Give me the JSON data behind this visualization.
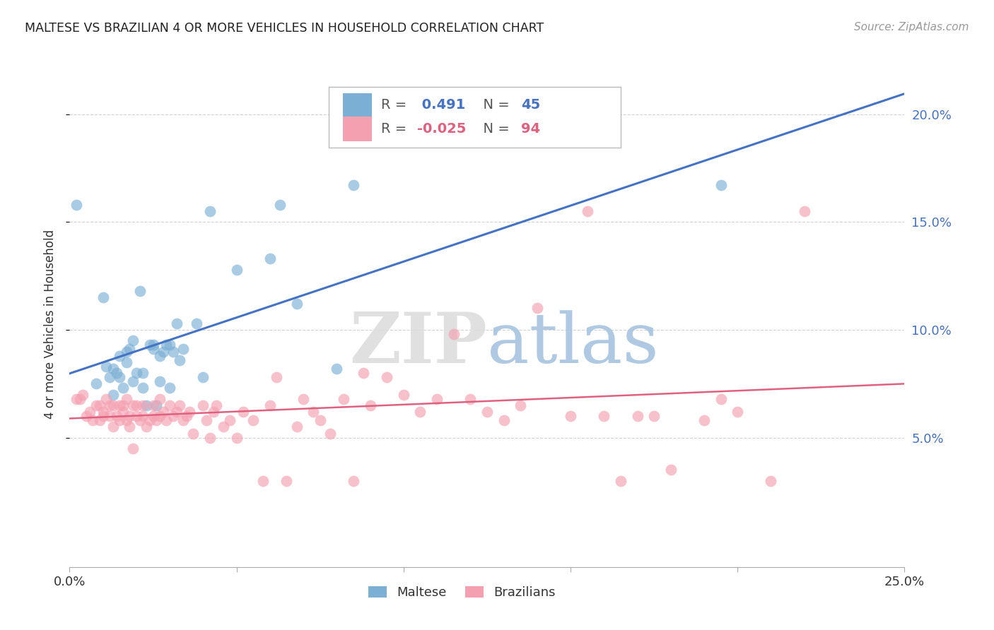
{
  "title": "MALTESE VS BRAZILIAN 4 OR MORE VEHICLES IN HOUSEHOLD CORRELATION CHART",
  "source": "Source: ZipAtlas.com",
  "ylabel": "4 or more Vehicles in Household",
  "xlim": [
    0.0,
    0.25
  ],
  "ylim": [
    -0.01,
    0.215
  ],
  "yticks": [
    0.05,
    0.1,
    0.15,
    0.2
  ],
  "ytick_labels": [
    "5.0%",
    "10.0%",
    "15.0%",
    "20.0%"
  ],
  "xticks": [
    0.0,
    0.05,
    0.1,
    0.15,
    0.2,
    0.25
  ],
  "xtick_labels": [
    "0.0%",
    "",
    "",
    "",
    "",
    "25.0%"
  ],
  "blue_R": 0.491,
  "blue_N": 45,
  "pink_R": -0.025,
  "pink_N": 94,
  "blue_color": "#7BAFD4",
  "pink_color": "#F4A0B0",
  "blue_line_color": "#4472C4",
  "pink_line_color": "#E06080",
  "blue_tick_color": "#4472C4",
  "blue_scatter_x": [
    0.002,
    0.008,
    0.01,
    0.011,
    0.012,
    0.013,
    0.013,
    0.014,
    0.015,
    0.015,
    0.016,
    0.017,
    0.017,
    0.018,
    0.019,
    0.019,
    0.02,
    0.021,
    0.022,
    0.022,
    0.023,
    0.024,
    0.025,
    0.025,
    0.026,
    0.027,
    0.027,
    0.028,
    0.029,
    0.03,
    0.03,
    0.031,
    0.032,
    0.033,
    0.034,
    0.038,
    0.04,
    0.042,
    0.05,
    0.06,
    0.063,
    0.068,
    0.08,
    0.085,
    0.195
  ],
  "blue_scatter_y": [
    0.158,
    0.075,
    0.115,
    0.083,
    0.078,
    0.07,
    0.082,
    0.08,
    0.078,
    0.088,
    0.073,
    0.085,
    0.09,
    0.091,
    0.076,
    0.095,
    0.08,
    0.118,
    0.073,
    0.08,
    0.065,
    0.093,
    0.091,
    0.093,
    0.065,
    0.088,
    0.076,
    0.09,
    0.093,
    0.093,
    0.073,
    0.09,
    0.103,
    0.086,
    0.091,
    0.103,
    0.078,
    0.155,
    0.128,
    0.133,
    0.158,
    0.112,
    0.082,
    0.167,
    0.167
  ],
  "pink_scatter_x": [
    0.002,
    0.003,
    0.004,
    0.005,
    0.006,
    0.007,
    0.008,
    0.009,
    0.009,
    0.01,
    0.01,
    0.011,
    0.012,
    0.012,
    0.013,
    0.013,
    0.014,
    0.015,
    0.015,
    0.016,
    0.016,
    0.017,
    0.017,
    0.018,
    0.018,
    0.019,
    0.019,
    0.02,
    0.02,
    0.021,
    0.022,
    0.022,
    0.023,
    0.024,
    0.025,
    0.025,
    0.026,
    0.027,
    0.027,
    0.028,
    0.029,
    0.03,
    0.031,
    0.032,
    0.033,
    0.034,
    0.035,
    0.036,
    0.037,
    0.04,
    0.041,
    0.042,
    0.043,
    0.044,
    0.046,
    0.048,
    0.05,
    0.052,
    0.055,
    0.058,
    0.06,
    0.062,
    0.065,
    0.068,
    0.07,
    0.073,
    0.075,
    0.078,
    0.082,
    0.085,
    0.088,
    0.09,
    0.095,
    0.1,
    0.105,
    0.11,
    0.115,
    0.12,
    0.125,
    0.13,
    0.135,
    0.14,
    0.15,
    0.155,
    0.16,
    0.165,
    0.17,
    0.175,
    0.18,
    0.19,
    0.195,
    0.2,
    0.21,
    0.22
  ],
  "pink_scatter_y": [
    0.068,
    0.068,
    0.07,
    0.06,
    0.062,
    0.058,
    0.065,
    0.058,
    0.065,
    0.062,
    0.06,
    0.068,
    0.065,
    0.06,
    0.055,
    0.065,
    0.06,
    0.058,
    0.065,
    0.062,
    0.065,
    0.068,
    0.058,
    0.055,
    0.06,
    0.065,
    0.045,
    0.06,
    0.065,
    0.058,
    0.06,
    0.065,
    0.055,
    0.058,
    0.06,
    0.065,
    0.058,
    0.06,
    0.068,
    0.062,
    0.058,
    0.065,
    0.06,
    0.062,
    0.065,
    0.058,
    0.06,
    0.062,
    0.052,
    0.065,
    0.058,
    0.05,
    0.062,
    0.065,
    0.055,
    0.058,
    0.05,
    0.062,
    0.058,
    0.03,
    0.065,
    0.078,
    0.03,
    0.055,
    0.068,
    0.062,
    0.058,
    0.052,
    0.068,
    0.03,
    0.08,
    0.065,
    0.078,
    0.07,
    0.062,
    0.068,
    0.098,
    0.068,
    0.062,
    0.058,
    0.065,
    0.11,
    0.06,
    0.155,
    0.06,
    0.03,
    0.06,
    0.06,
    0.035,
    0.058,
    0.068,
    0.062,
    0.03,
    0.155
  ]
}
